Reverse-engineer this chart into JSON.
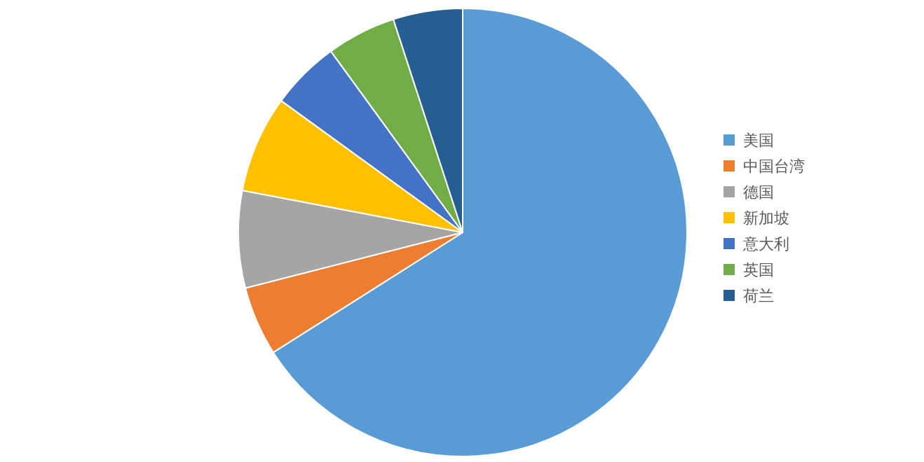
{
  "chart_data": {
    "type": "pie",
    "categories": [
      "美国",
      "中国台湾",
      "德国",
      "新加坡",
      "意大利",
      "英国",
      "荷兰"
    ],
    "values": [
      66,
      5,
      7,
      7,
      5,
      5,
      5
    ],
    "colors": [
      "#5b9bd5",
      "#ed7d31",
      "#a5a5a5",
      "#ffc000",
      "#4472c4",
      "#70ad47",
      "#255e91"
    ],
    "legend": "right"
  }
}
